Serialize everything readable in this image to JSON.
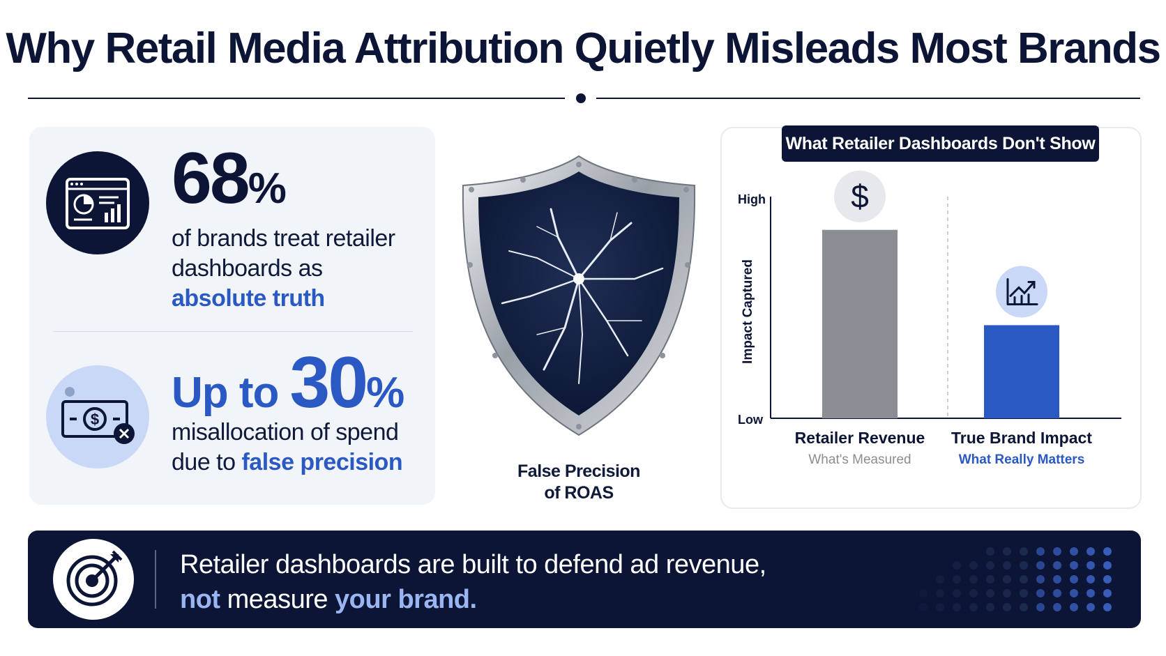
{
  "title": "Why Retail Media Attribution Quietly Misleads Most Brands",
  "stats": {
    "stat1": {
      "number": "68",
      "percent": "%",
      "text_before": "of brands treat retailer dashboards as",
      "highlight": "absolute truth",
      "icon": "dashboard-chart-icon"
    },
    "stat2": {
      "prefix": "Up to",
      "number": "30",
      "percent": "%",
      "text_before": "misallocation of spend due to",
      "highlight": "false precision",
      "icon": "money-cancel-icon"
    }
  },
  "shield": {
    "caption_line1": "False Precision",
    "caption_line2": "of ROAS",
    "icon": "cracked-shield-icon"
  },
  "chart_data": {
    "type": "bar",
    "title": "What Retailer Dashboards Don't Show",
    "ylabel": "Impact Captured",
    "ylim": [
      0,
      100
    ],
    "y_tick_labels": [
      "Low",
      "High"
    ],
    "categories": [
      "Retailer Revenue",
      "True Brand Impact"
    ],
    "subtitles": [
      "What's Measured",
      "What Really Matters"
    ],
    "values": [
      85,
      42
    ],
    "colors": [
      "#8a8d93",
      "#2a59c4"
    ],
    "bar_icons": [
      "dollar-icon",
      "trend-up-icon"
    ]
  },
  "banner": {
    "line1": "Retailer dashboards are built to defend ad revenue,",
    "line2_a": "not",
    "line2_b": "measure",
    "line2_c": "your brand.",
    "icon": "target-arrow-icon"
  },
  "colors": {
    "navy": "#0c1535",
    "blue": "#2a59c4",
    "light_blue": "#9ab6f2",
    "gray_bar": "#8a8d93"
  }
}
